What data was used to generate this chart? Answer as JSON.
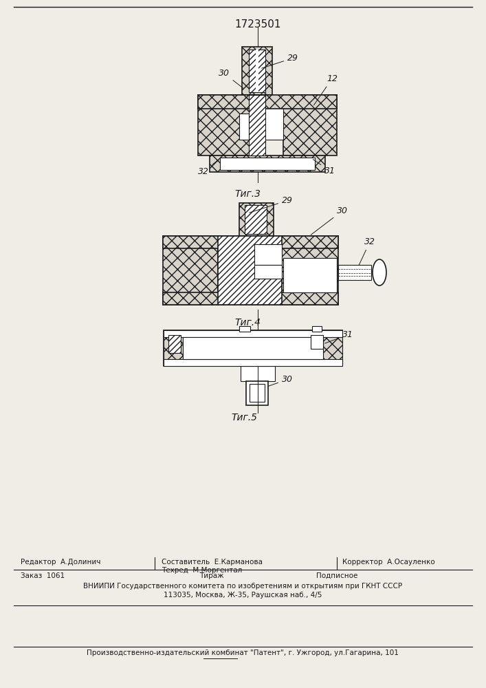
{
  "patent_number": "1723501",
  "bg_color": "#f0ede6",
  "line_color": "#1a1a1a",
  "fig3_label": "Τиг.3",
  "fig4_label": "Τиг.4",
  "fig5_label": "Τиг.5",
  "footer": {
    "editor_line": "Редактор  А.Долинич",
    "composer_line": "Составитель  Е.Карманова",
    "techred_line": "Техред  М.Моргентал",
    "corrector_line": "Корректор  А.Осауленко",
    "order_line": "Заказ  1061",
    "tirazh_line": "Тираж",
    "podpisnoe_line": "Подписное",
    "vniip_line": "ВНИИПИ Государственного комитета по изобретениям и открытиям при ГКНТ СССР",
    "address_line": "113035, Москва, Ж-35, Раушская наб., 4/5",
    "factory_line": "Производственно-издательский комбинат \"Патент\", г. Ужгород, ул.Гагарина, 101"
  }
}
